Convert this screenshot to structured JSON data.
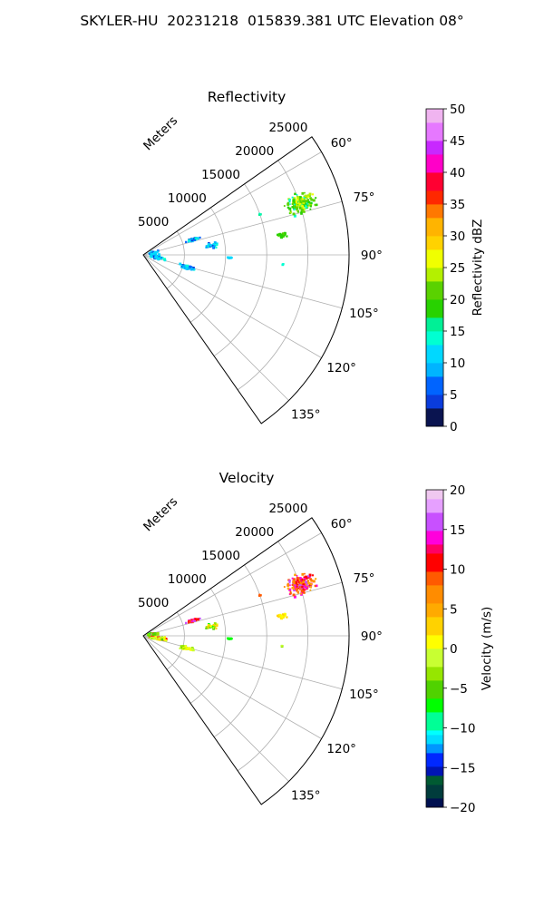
{
  "suptitle": "SKYLER-HU  20231218  015839.381 UTC Elevation 08°",
  "chart_data": [
    {
      "type": "polar-sector",
      "title": "Reflectivity",
      "range_label": "Meters",
      "range_ticks": [
        5000,
        10000,
        15000,
        20000,
        25000
      ],
      "range_tick_labels": [
        "5000",
        "10000",
        "15000",
        "20000",
        "25000"
      ],
      "rmax": 25000,
      "angle_range_deg": [
        55,
        145
      ],
      "angle_ticks": [
        60,
        75,
        90,
        105,
        120,
        135
      ],
      "angle_tick_labels": [
        "60°",
        "75°",
        "90°",
        "105°",
        "120°",
        "135°"
      ],
      "grid": true,
      "colorbar": {
        "label": "Reflectivity dBZ",
        "min": 0,
        "max": 50,
        "ticks": [
          0,
          5,
          10,
          15,
          20,
          25,
          30,
          35,
          40,
          45,
          50
        ],
        "tick_labels": [
          "0",
          "5",
          "10",
          "15",
          "20",
          "25",
          "30",
          "35",
          "40",
          "45",
          "50"
        ]
      },
      "blobs": [
        {
          "az": 72,
          "r": 20000,
          "az_spread": 4.5,
          "r_spread": 2500,
          "count": 170,
          "values": [
            18,
            26
          ],
          "mix": 0.15,
          "alt": [
            13,
            16
          ]
        },
        {
          "az": 82,
          "r": 17000,
          "az_spread": 1.5,
          "r_spread": 700,
          "count": 30,
          "values": [
            17,
            22
          ]
        },
        {
          "az": 71,
          "r": 15000,
          "az_spread": 1,
          "r_spread": 400,
          "count": 6,
          "values": [
            14,
            17
          ]
        },
        {
          "az": 73,
          "r": 6300,
          "az_spread": 2.5,
          "r_spread": 1100,
          "count": 45,
          "values": [
            9,
            14
          ],
          "mix": 0.3,
          "alt": [
            4,
            7
          ]
        },
        {
          "az": 82,
          "r": 8200,
          "az_spread": 3,
          "r_spread": 1200,
          "count": 40,
          "values": [
            8,
            14
          ],
          "mix": 0.2,
          "alt": [
            4,
            7
          ]
        },
        {
          "az": 92,
          "r": 10500,
          "az_spread": 1,
          "r_spread": 500,
          "count": 8,
          "values": [
            10,
            13
          ]
        },
        {
          "az": 106,
          "r": 5500,
          "az_spread": 3.5,
          "r_spread": 1300,
          "count": 50,
          "values": [
            9,
            14
          ],
          "mix": 0.3,
          "alt": [
            3,
            7
          ]
        },
        {
          "az": 100,
          "r": 1800,
          "az_spread": 8,
          "r_spread": 1300,
          "count": 70,
          "values": [
            10,
            15
          ],
          "mix": 0.25,
          "alt": [
            3,
            7
          ]
        },
        {
          "az": 80,
          "r": 1200,
          "az_spread": 12,
          "r_spread": 900,
          "count": 45,
          "values": [
            9,
            14
          ],
          "mix": 0.25,
          "alt": [
            3,
            7
          ]
        },
        {
          "az": 94,
          "r": 17000,
          "az_spread": 0.5,
          "r_spread": 200,
          "count": 2,
          "values": [
            13,
            14
          ]
        }
      ]
    },
    {
      "type": "polar-sector",
      "title": "Velocity",
      "range_label": "Meters",
      "range_ticks": [
        5000,
        10000,
        15000,
        20000,
        25000
      ],
      "range_tick_labels": [
        "5000",
        "10000",
        "15000",
        "20000",
        "25000"
      ],
      "rmax": 25000,
      "angle_range_deg": [
        55,
        145
      ],
      "angle_ticks": [
        60,
        75,
        90,
        105,
        120,
        135
      ],
      "angle_tick_labels": [
        "60°",
        "75°",
        "90°",
        "105°",
        "120°",
        "135°"
      ],
      "grid": true,
      "colorbar": {
        "label": "Velocity (m/s)",
        "min": -20,
        "max": 20,
        "ticks": [
          -20,
          -15,
          -10,
          -5,
          0,
          5,
          10,
          15,
          20
        ],
        "tick_labels": [
          "−20",
          "−15",
          "−10",
          "−5",
          "0",
          "5",
          "10",
          "15",
          "20"
        ]
      },
      "blobs": [
        {
          "az": 72,
          "r": 20000,
          "az_spread": 4.5,
          "r_spread": 2500,
          "count": 170,
          "values": [
            5,
            12
          ],
          "mix": 0.35,
          "alt": [
            13,
            17
          ]
        },
        {
          "az": 82,
          "r": 17000,
          "az_spread": 1.5,
          "r_spread": 700,
          "count": 30,
          "values": [
            1,
            4
          ]
        },
        {
          "az": 71,
          "r": 15000,
          "az_spread": 1,
          "r_spread": 400,
          "count": 6,
          "values": [
            8,
            11
          ]
        },
        {
          "az": 73,
          "r": 6300,
          "az_spread": 2.5,
          "r_spread": 1100,
          "count": 45,
          "values": [
            7,
            12
          ],
          "mix": 0.3,
          "alt": [
            14,
            17
          ]
        },
        {
          "az": 82,
          "r": 8200,
          "az_spread": 3,
          "r_spread": 1200,
          "count": 40,
          "values": [
            -4,
            4
          ],
          "mix": 0.3,
          "alt": [
            -7,
            -4
          ]
        },
        {
          "az": 92,
          "r": 10500,
          "az_spread": 1,
          "r_spread": 500,
          "count": 8,
          "values": [
            -8,
            -5
          ]
        },
        {
          "az": 106,
          "r": 5500,
          "az_spread": 3.5,
          "r_spread": 1300,
          "count": 50,
          "values": [
            -5,
            2
          ]
        },
        {
          "az": 100,
          "r": 1800,
          "az_spread": 8,
          "r_spread": 1300,
          "count": 70,
          "values": [
            -5,
            3
          ],
          "mix": 0.3,
          "alt": [
            8,
            12
          ]
        },
        {
          "az": 80,
          "r": 1200,
          "az_spread": 12,
          "r_spread": 900,
          "count": 45,
          "values": [
            -7,
            -2
          ],
          "mix": 0.3,
          "alt": [
            10,
            16
          ]
        },
        {
          "az": 94,
          "r": 17000,
          "az_spread": 0.5,
          "r_spread": 200,
          "count": 2,
          "values": [
            -3,
            -1
          ]
        }
      ]
    }
  ]
}
